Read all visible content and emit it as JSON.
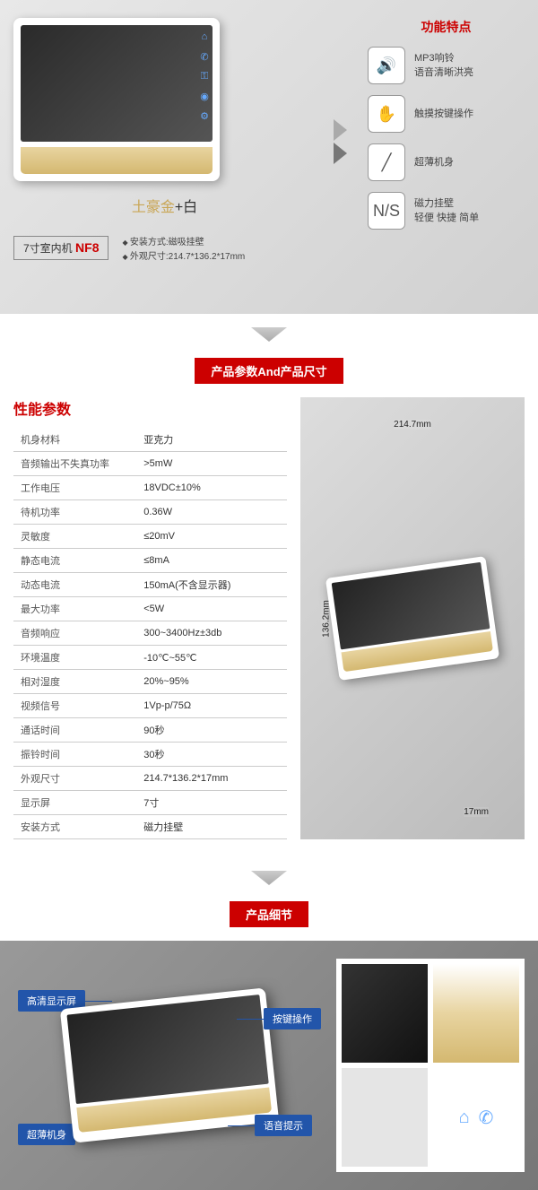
{
  "section1": {
    "color_gold": "土豪金",
    "color_plus": "+",
    "color_white": "白",
    "model_prefix": "7寸室内机",
    "model": "NF8",
    "mini_specs": [
      "安装方式:磁吸挂壁",
      "外观尺寸:214.7*136.2*17mm"
    ]
  },
  "features": {
    "title": "功能特点",
    "items": [
      {
        "icon": "🔊",
        "line1": "MP3响铃",
        "line2": "语音清晰洪亮"
      },
      {
        "icon": "✋",
        "line1": "触摸按键操作",
        "line2": ""
      },
      {
        "icon": "╱",
        "line1": "超薄机身",
        "line2": ""
      },
      {
        "icon": "N/S",
        "line1": "磁力挂壁",
        "line2": "轻便 快捷 简单"
      }
    ]
  },
  "section2": {
    "title": "产品参数And产品尺寸",
    "spec_header": "性能参数",
    "specs": [
      [
        "机身材料",
        "亚克力"
      ],
      [
        "音频输出不失真功率",
        ">5mW"
      ],
      [
        "工作电压",
        "18VDC±10%"
      ],
      [
        "待机功率",
        "0.36W"
      ],
      [
        "灵敏度",
        "≤20mV"
      ],
      [
        "静态电流",
        "≤8mA"
      ],
      [
        "动态电流",
        "150mA(不含显示器)"
      ],
      [
        "最大功率",
        "<5W"
      ],
      [
        "音频响应",
        "300~3400Hz±3db"
      ],
      [
        "环境温度",
        "-10℃~55℃"
      ],
      [
        "相对湿度",
        "20%~95%"
      ],
      [
        "视频信号",
        "1Vp-p/75Ω"
      ],
      [
        "通话时间",
        "90秒"
      ],
      [
        "振铃时间",
        "30秒"
      ],
      [
        "外观尺寸",
        "214.7*136.2*17mm"
      ],
      [
        "显示屏",
        "7寸"
      ],
      [
        "安装方式",
        "磁力挂壁"
      ]
    ],
    "dim_w": "214.7mm",
    "dim_h": "136.2mm",
    "dim_d": "17mm"
  },
  "section3": {
    "title": "产品细节",
    "callouts": [
      "高清显示屏",
      "超薄机身",
      "按键操作",
      "语音提示"
    ]
  },
  "colors": {
    "accent": "#c00",
    "gold1": "#e8d4a0",
    "gold2": "#d4b870",
    "blue": "#2255aa"
  }
}
